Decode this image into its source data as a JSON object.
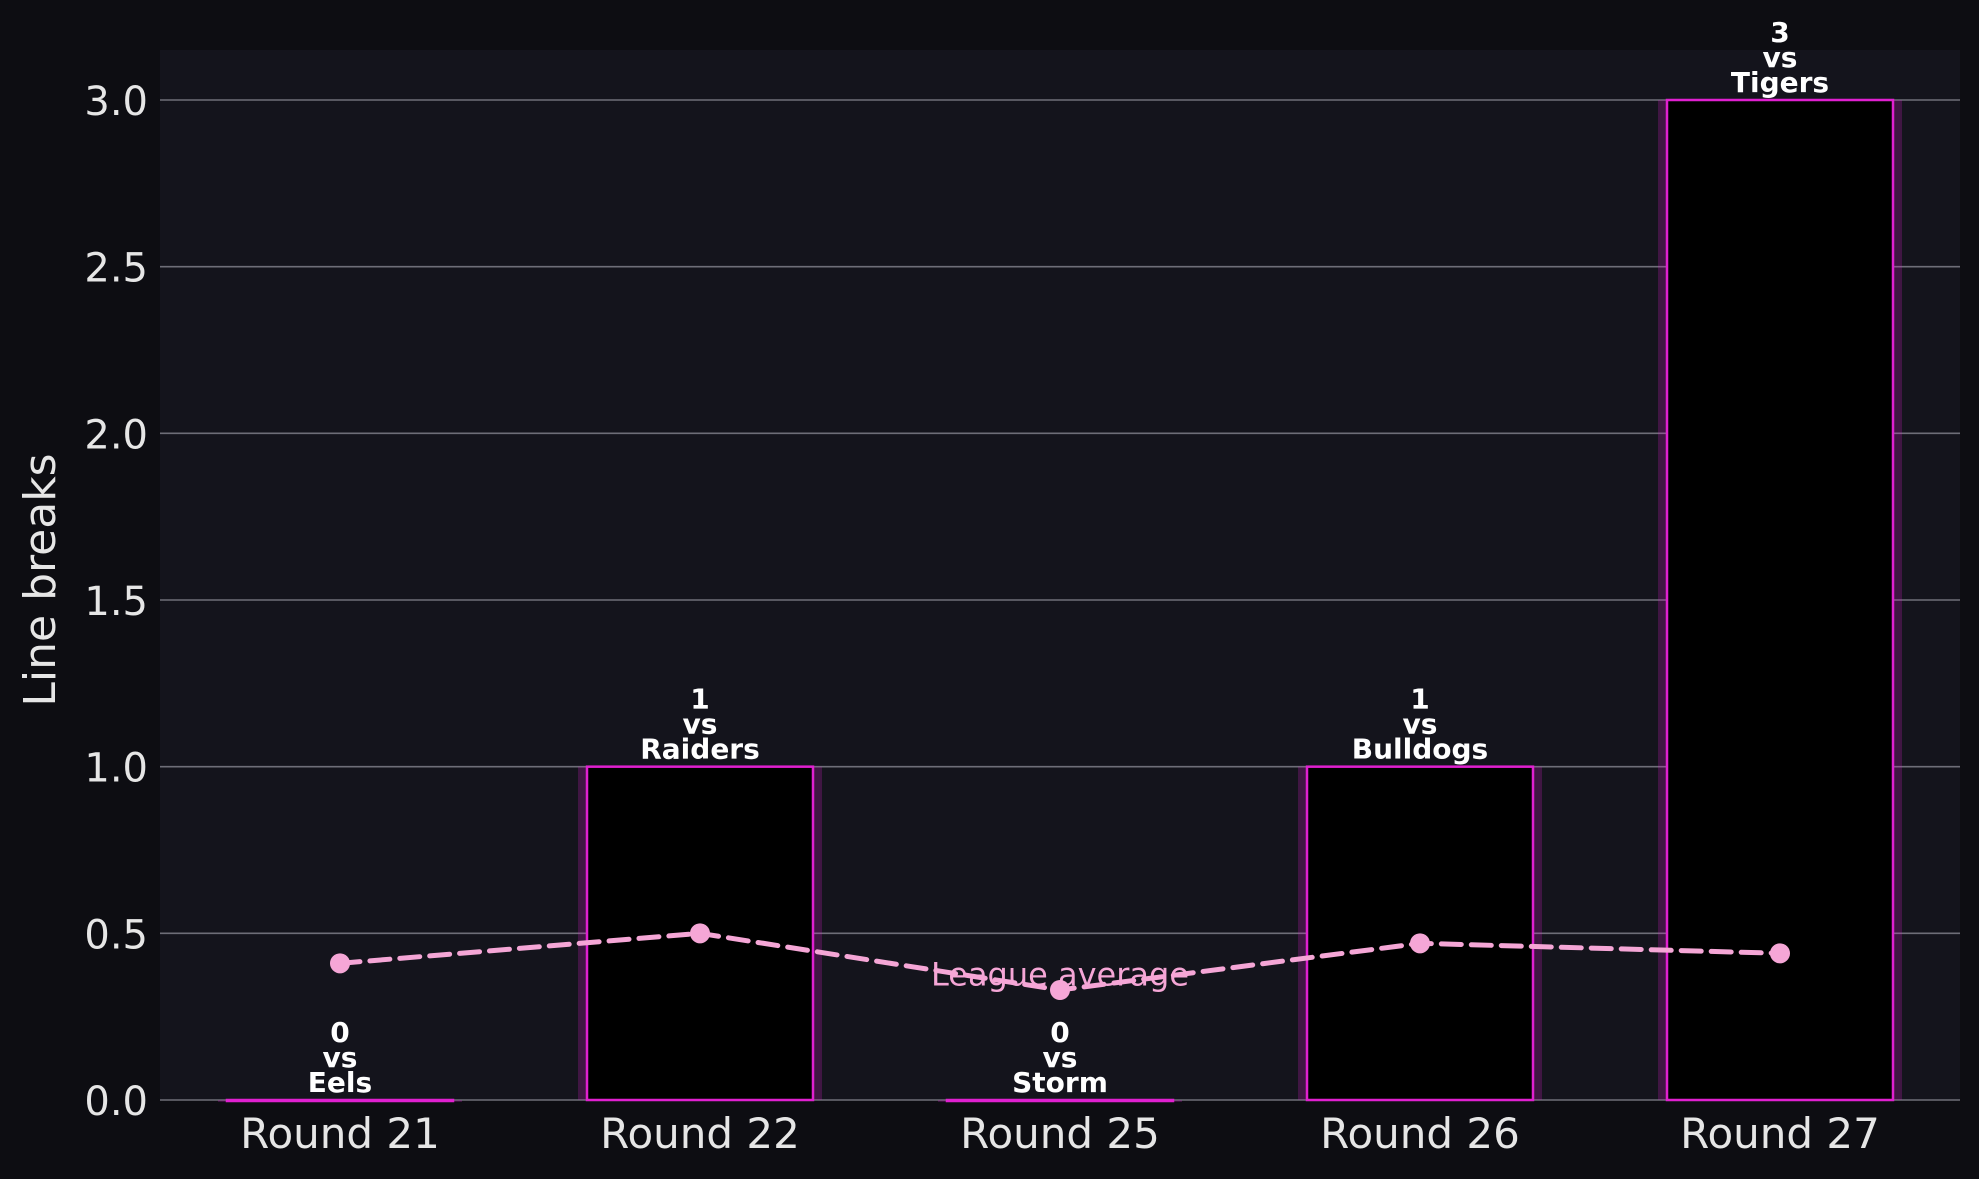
{
  "chart_data": {
    "type": "bar",
    "ylabel": "Line breaks",
    "ylim": [
      0,
      3.15
    ],
    "yticks": [
      "0.0",
      "0.5",
      "1.0",
      "1.5",
      "2.0",
      "2.5",
      "3.0"
    ],
    "grid": true,
    "categories": [
      "Round 21",
      "Round 22",
      "Round 25",
      "Round 26",
      "Round 27"
    ],
    "bar_labels": [
      [
        "0",
        "vs",
        "Eels"
      ],
      [
        "1",
        "vs",
        "Raiders"
      ],
      [
        "0",
        "vs",
        "Storm"
      ],
      [
        "1",
        "vs",
        "Bulldogs"
      ],
      [
        "3",
        "vs",
        "Tigers"
      ]
    ],
    "series": [
      {
        "type": "bar",
        "values": [
          0,
          1,
          0,
          1,
          3
        ],
        "color": "#e020d0"
      },
      {
        "type": "line",
        "style": "dashed",
        "values": [
          0.41,
          0.5,
          0.33,
          0.47,
          0.44
        ],
        "color": "#f5a6d6"
      }
    ],
    "annotations": [
      {
        "text": "League average",
        "x": "Round 25",
        "y": 0.38
      }
    ],
    "colors": {
      "page_background": "#0d0d12",
      "plot_background": "#14141c",
      "bar_fill": "#000000",
      "bar_edge": "#e020d0",
      "line": "#f5a6d6",
      "grid": "#6e6e78",
      "text": "#e6e6e6",
      "label_text": "#ffffff"
    }
  }
}
